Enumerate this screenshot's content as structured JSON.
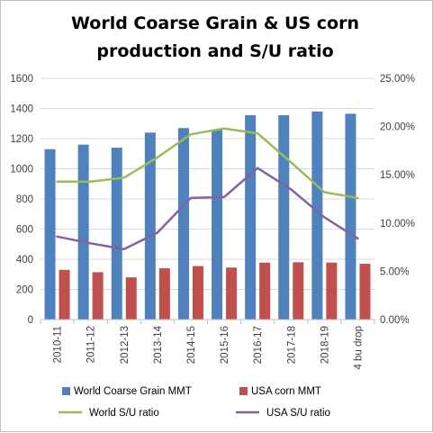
{
  "chart_data": {
    "type": "bar",
    "title_lines": [
      "World Coarse Grain & US corn",
      "production and S/U ratio"
    ],
    "categories": [
      "2010-11",
      "2011-12",
      "2012-13",
      "2013-14",
      "2014-15",
      "2015-16",
      "2016-17",
      "2017-18",
      "2018-19",
      "4 bu drop"
    ],
    "y_left": {
      "min": 0,
      "max": 1600,
      "step": 200,
      "ticks": [
        "0",
        "200",
        "400",
        "600",
        "800",
        "1000",
        "1200",
        "1400",
        "1600"
      ]
    },
    "y_right": {
      "min": 0,
      "max": 0.25,
      "step": 0.05,
      "ticks": [
        "0.00%",
        "5.00%",
        "10.00%",
        "15.00%",
        "20.00%",
        "25.00%"
      ]
    },
    "grid": true,
    "legend_position": "bottom",
    "series": [
      {
        "name": "World Coarse Grain MMT",
        "kind": "bar",
        "axis": "left",
        "color": "#4f81bd",
        "values": [
          1130,
          1160,
          1140,
          1240,
          1270,
          1260,
          1355,
          1355,
          1380,
          1365
        ]
      },
      {
        "name": "USA corn MMT",
        "kind": "bar",
        "axis": "left",
        "color": "#c0504d",
        "values": [
          330,
          314,
          280,
          340,
          355,
          345,
          378,
          380,
          378,
          370
        ]
      },
      {
        "name": "World S/U ratio",
        "kind": "line",
        "axis": "right",
        "color": "#9bbb59",
        "values": [
          0.143,
          0.143,
          0.147,
          0.168,
          0.192,
          0.198,
          0.193,
          0.163,
          0.132,
          0.126
        ]
      },
      {
        "name": "USA S/U ratio",
        "kind": "line",
        "axis": "right",
        "color": "#8064a2",
        "values": [
          0.086,
          0.079,
          0.073,
          0.09,
          0.126,
          0.127,
          0.157,
          0.135,
          0.106,
          0.084
        ]
      }
    ]
  }
}
